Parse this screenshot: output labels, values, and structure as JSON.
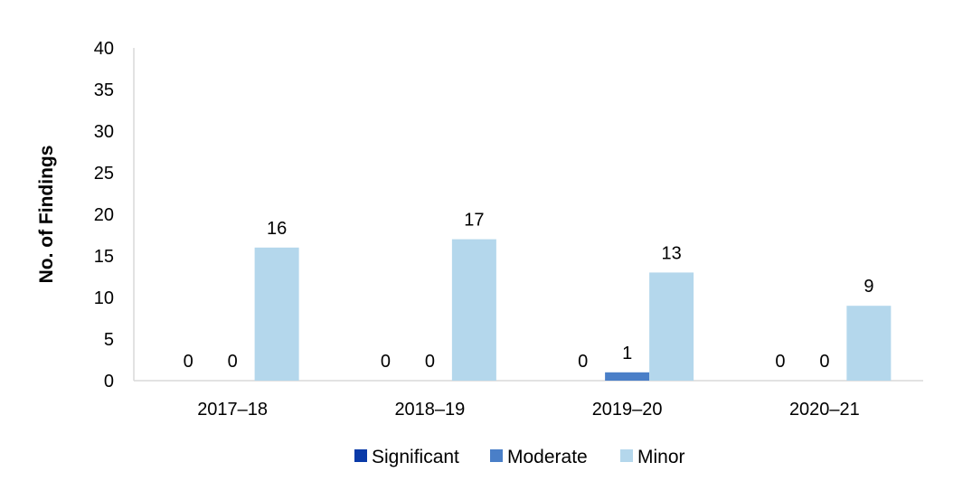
{
  "chart_data": {
    "type": "bar",
    "title": "",
    "xlabel": "",
    "ylabel": "No. of Findings",
    "categories": [
      "2017–18",
      "2018–19",
      "2019–20",
      "2020–21"
    ],
    "series": [
      {
        "name": "Significant",
        "color": "#0a3aa8",
        "values": [
          0,
          0,
          0,
          0
        ]
      },
      {
        "name": "Moderate",
        "color": "#4a7fc8",
        "values": [
          0,
          0,
          1,
          0
        ]
      },
      {
        "name": "Minor",
        "color": "#b4d7ec",
        "values": [
          16,
          17,
          13,
          9
        ]
      }
    ],
    "ylim": [
      0,
      40
    ],
    "yticks": [
      "0",
      "5",
      "10",
      "15",
      "20",
      "25",
      "30",
      "35",
      "40"
    ],
    "grid": false,
    "legend": "bottom"
  }
}
